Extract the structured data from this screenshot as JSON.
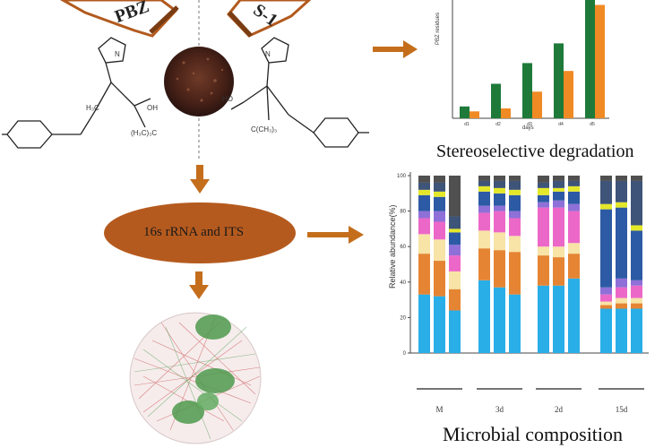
{
  "labels": {
    "bottle_left": "PBZ",
    "bottle_right": "S-1",
    "ellipse_text": "16s rRNA and ITS",
    "degradation_caption": "Stereoselective degradation",
    "composition_caption": "Microbial composition"
  },
  "molecule_left": {
    "oh": "OH",
    "h3c": "H₃C",
    "ch3": "(H₃C)₃C",
    "n_label": "N"
  },
  "molecule_right": {
    "oh": "HO",
    "cme": "C(CH₃)₃",
    "n_label": "N"
  },
  "colors": {
    "arrow": "#c46e1c",
    "ellipse": "#b55a1e",
    "green_bar": "#1f7a3a",
    "orange_bar": "#f08a24"
  },
  "chart_data": [
    {
      "type": "bar",
      "title": "",
      "ylabel": "PBZ residues",
      "xlabel": "days",
      "categories": [
        "d1",
        "d2",
        "d3",
        "d4",
        "d5"
      ],
      "series": [
        {
          "name": "",
          "values": [
            1.2,
            3.5,
            5.6,
            7.6,
            12.0
          ]
        },
        {
          "name": "",
          "values": [
            0.7,
            1.0,
            2.7,
            4.8,
            11.5
          ]
        }
      ],
      "ylim": [
        0,
        12
      ]
    },
    {
      "type": "bar",
      "stacked": true,
      "ylabel": "Relative abundance(%)",
      "groups": [
        "M",
        "3d",
        "2d",
        "15d"
      ],
      "ylim": [
        0,
        100
      ],
      "ytick_labels": [
        "0",
        "20",
        "40",
        "60",
        "80",
        "100"
      ],
      "segment_colors": [
        "#29aee8",
        "#e58534",
        "#f7e4a6",
        "#ec68c8",
        "#8f70d8",
        "#2c5aa4",
        "#e4e82a",
        "#3e5478",
        "#505050"
      ],
      "columns": [
        [
          33,
          23,
          11,
          9,
          4,
          9,
          3,
          4,
          4
        ],
        [
          32,
          20,
          12,
          10,
          6,
          8,
          3,
          5,
          4
        ],
        [
          24,
          12,
          10,
          9,
          6,
          7,
          2,
          7,
          23
        ],
        [
          41,
          18,
          10,
          10,
          4,
          8,
          3,
          3,
          3
        ],
        [
          37,
          21,
          10,
          12,
          3,
          7,
          3,
          4,
          3
        ],
        [
          33,
          24,
          9,
          10,
          4,
          9,
          3,
          5,
          3
        ],
        [
          38,
          17,
          5,
          22,
          3,
          4,
          4,
          3,
          4
        ],
        [
          38,
          16,
          6,
          22,
          4,
          5,
          2,
          4,
          3
        ],
        [
          42,
          14,
          6,
          18,
          4,
          7,
          3,
          3,
          3
        ],
        [
          25,
          2,
          2,
          4,
          4,
          44,
          3,
          13,
          3
        ],
        [
          25,
          3,
          3,
          6,
          5,
          40,
          3,
          12,
          3
        ],
        [
          25,
          3,
          3,
          7,
          3,
          28,
          3,
          25,
          3
        ]
      ]
    }
  ]
}
